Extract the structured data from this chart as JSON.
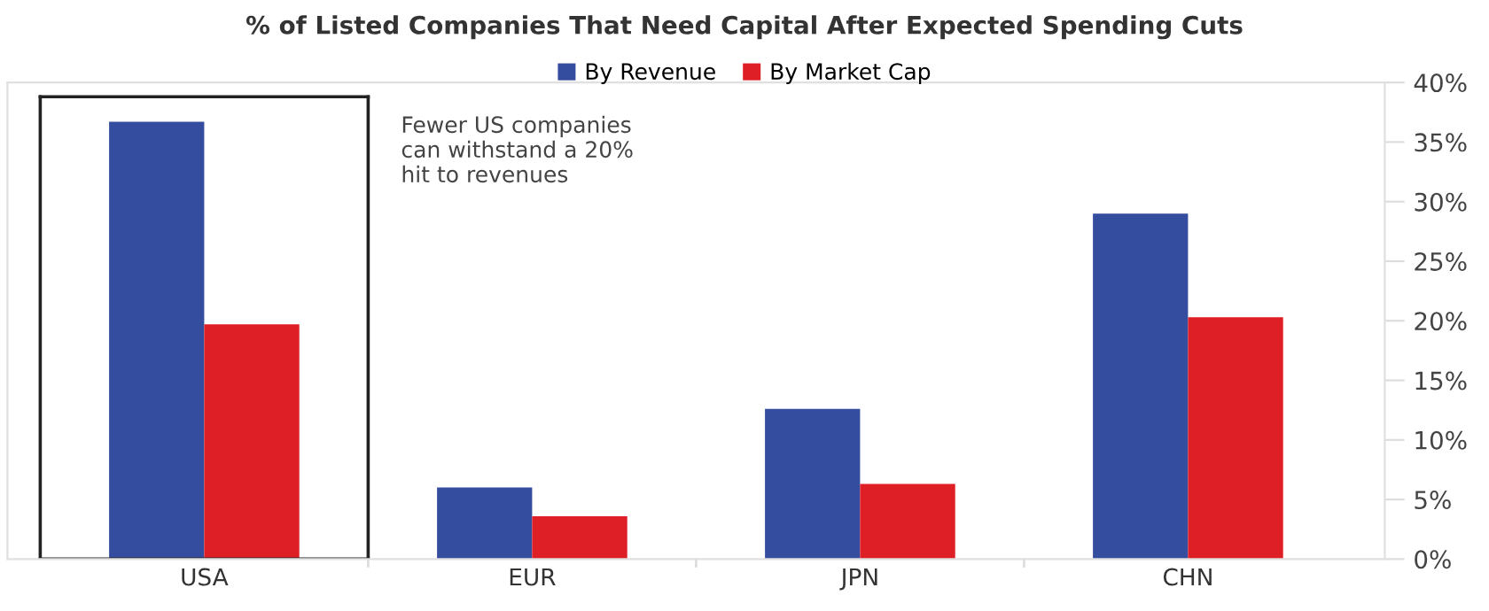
{
  "chart_data": {
    "type": "bar",
    "title": "% of Listed Companies That Need Capital After Expected Spending Cuts",
    "categories": [
      "USA",
      "EUR",
      "JPN",
      "CHN"
    ],
    "series": [
      {
        "name": "By Revenue",
        "color": "#354d9f",
        "values": [
          36.7,
          6.0,
          12.6,
          29.0
        ]
      },
      {
        "name": "By Market Cap",
        "color": "#de1f26",
        "values": [
          19.7,
          3.6,
          6.3,
          20.3
        ]
      }
    ],
    "ylim": [
      0,
      40
    ],
    "yticks": [
      {
        "value": 0,
        "label": "0%"
      },
      {
        "value": 5,
        "label": "5%"
      },
      {
        "value": 10,
        "label": "10%"
      },
      {
        "value": 15,
        "label": "15%"
      },
      {
        "value": 20,
        "label": "20%"
      },
      {
        "value": 25,
        "label": "25%"
      },
      {
        "value": 30,
        "label": "30%"
      },
      {
        "value": 35,
        "label": "35%"
      },
      {
        "value": 40,
        "label": "40%"
      }
    ],
    "annotations": [
      "Fewer US companies\ncan withstand a 20%\nhit to revenues"
    ],
    "legend": "top",
    "grid": false
  }
}
